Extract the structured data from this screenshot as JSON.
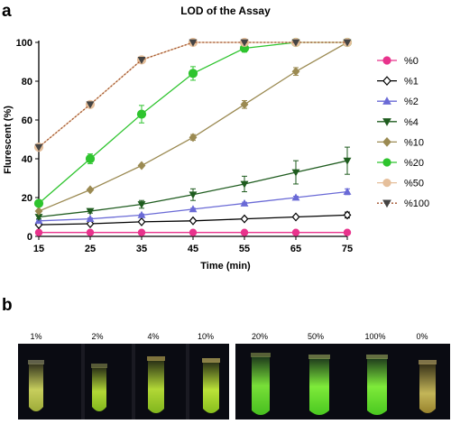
{
  "panel_a_letter": "a",
  "panel_b_letter": "b",
  "chart_data": {
    "type": "line",
    "title": "LOD of the Assay",
    "xlabel": "Time (min)",
    "ylabel": "Flurescent (%)",
    "x": [
      15,
      25,
      35,
      45,
      55,
      65,
      75
    ],
    "xlim": [
      15,
      75
    ],
    "ylim": [
      0,
      100
    ],
    "xticks": [
      15,
      25,
      35,
      45,
      55,
      65,
      75
    ],
    "yticks": [
      0,
      20,
      40,
      60,
      80,
      100
    ],
    "grid": false,
    "legend": "right",
    "series": [
      {
        "name": "%0",
        "color": "#e8338c",
        "marker": "circle",
        "fill": true,
        "dashed": false,
        "values": [
          2,
          2,
          2,
          2,
          2,
          2,
          2
        ],
        "errors": [
          0,
          0,
          0,
          0,
          0,
          0,
          0
        ]
      },
      {
        "name": "%1",
        "color": "#000000",
        "marker": "diamond",
        "fill": false,
        "dashed": false,
        "values": [
          6,
          6.5,
          7.5,
          8,
          9,
          10,
          11
        ],
        "errors": [
          0.5,
          0.5,
          0.5,
          0.5,
          0.6,
          0.7,
          1.5
        ]
      },
      {
        "name": "%2",
        "color": "#6a6ad6",
        "marker": "triangle",
        "fill": true,
        "dashed": false,
        "values": [
          8,
          9,
          11,
          14,
          17,
          20,
          23
        ],
        "errors": [
          0.5,
          0.5,
          0.5,
          0.5,
          0.6,
          0.7,
          1.5
        ]
      },
      {
        "name": "%4",
        "color": "#1f5c1f",
        "marker": "tri-down",
        "fill": true,
        "dashed": false,
        "values": [
          10,
          13,
          16.5,
          21.5,
          27,
          33,
          39
        ],
        "errors": [
          1,
          1,
          2,
          3,
          4,
          6,
          7
        ]
      },
      {
        "name": "%10",
        "color": "#9b8a52",
        "marker": "diamond",
        "fill": true,
        "dashed": false,
        "values": [
          13,
          24,
          36.5,
          51,
          68,
          85,
          100
        ],
        "errors": [
          0.5,
          0.5,
          0.5,
          1.5,
          2,
          2,
          0.5
        ]
      },
      {
        "name": "%20",
        "color": "#2ec42e",
        "marker": "circle",
        "fill": true,
        "dashed": false,
        "values": [
          17,
          40,
          63,
          84,
          97,
          100,
          100
        ],
        "errors": [
          1,
          2.5,
          4.5,
          3.5,
          2,
          0.5,
          0
        ]
      },
      {
        "name": "%50",
        "color": "#e5bf9b",
        "marker": "circle",
        "fill": true,
        "dashed": false,
        "values": [
          46,
          68,
          91,
          100,
          100,
          100,
          100
        ],
        "errors": [
          0,
          0,
          0,
          0,
          0,
          0,
          0
        ]
      },
      {
        "name": "%100",
        "color": "#444444",
        "marker": "tri-down",
        "fill": true,
        "dashed": true,
        "values": [
          46,
          68,
          91,
          100,
          100,
          100,
          100
        ],
        "errors": [
          0,
          0,
          0,
          0,
          0,
          0,
          0
        ]
      }
    ]
  },
  "panel_b": {
    "labels": [
      "1%",
      "2%",
      "4%",
      "10%",
      "20%",
      "50%",
      "100%",
      "0%"
    ]
  }
}
